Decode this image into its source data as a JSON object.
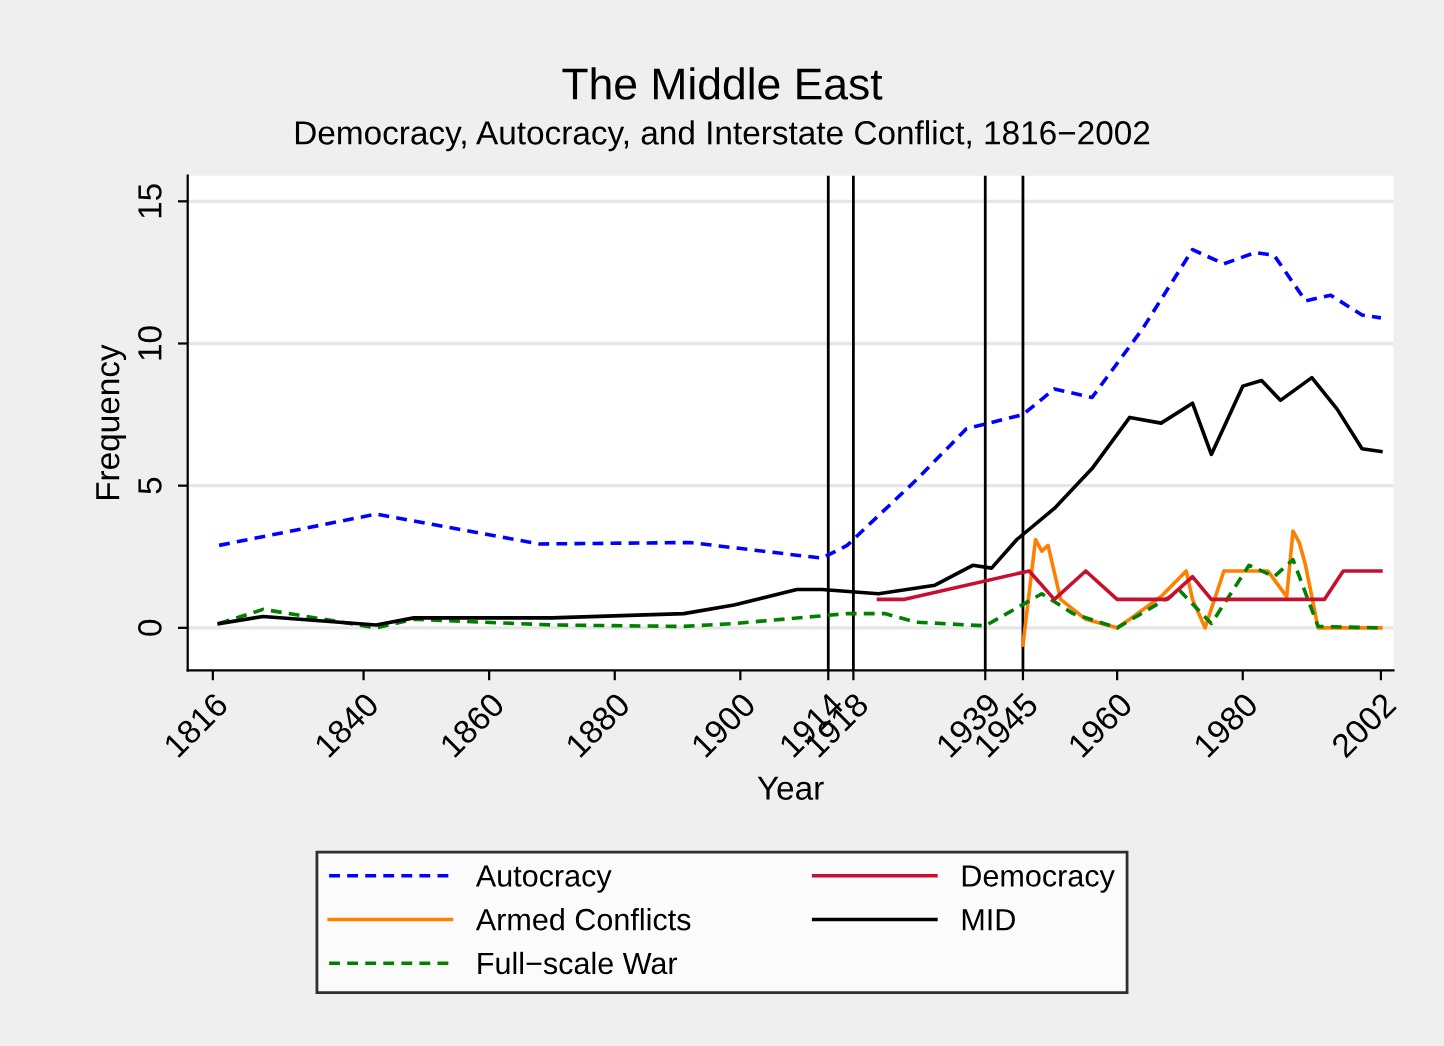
{
  "chart_data": {
    "type": "line",
    "title": "The Middle East",
    "subtitle": "Democracy, Autocracy, and Interstate Conflict, 1816−2002",
    "xlabel": "Year",
    "ylabel": "Frequency",
    "xlim": [
      1812,
      2004
    ],
    "ylim": [
      -1.5,
      15.9
    ],
    "xticks": [
      1816,
      1840,
      1860,
      1880,
      1900,
      1914,
      1918,
      1939,
      1945,
      1960,
      1980,
      2002
    ],
    "yticks": [
      0,
      5,
      10,
      15
    ],
    "grid": "y",
    "legend": "bottom",
    "ref_lines": [
      {
        "axis": "x",
        "value": 1914,
        "color": "#000000"
      },
      {
        "axis": "x",
        "value": 1918,
        "color": "#000000"
      },
      {
        "axis": "x",
        "value": 1939,
        "color": "#000000"
      },
      {
        "axis": "x",
        "value": 1945,
        "color": "#000000"
      }
    ],
    "series": [
      {
        "name": "Autocracy",
        "color": "#0000ff",
        "line_style": "dashed",
        "x": [
          1817,
          1842,
          1868,
          1892,
          1913,
          1917,
          1928,
          1936,
          1945,
          1950,
          1956,
          1964,
          1972,
          1977,
          1982,
          1985,
          1990,
          1994,
          1999,
          2002
        ],
        "values": [
          2.9,
          4.0,
          2.95,
          3.0,
          2.45,
          2.9,
          5.2,
          7.0,
          7.5,
          8.4,
          8.1,
          10.5,
          13.3,
          12.8,
          13.2,
          13.1,
          11.5,
          11.7,
          11.0,
          10.9
        ]
      },
      {
        "name": "Armed Conflicts",
        "color": "#ff8000",
        "line_style": "solid",
        "x": [
          1945,
          1947,
          1948,
          1949,
          1951,
          1955,
          1960,
          1962,
          1967,
          1971,
          1972,
          1974,
          1977,
          1984,
          1987,
          1988,
          1989,
          1990,
          1992,
          2002
        ],
        "values": [
          -0.6,
          3.1,
          2.7,
          2.9,
          1.0,
          0.3,
          0.0,
          0.3,
          1.1,
          2.0,
          1.0,
          0.0,
          2.0,
          2.0,
          1.1,
          3.4,
          3.0,
          2.2,
          0.0,
          0.0
        ]
      },
      {
        "name": "Full−scale War",
        "color": "#008000",
        "line_style": "dashed",
        "x": [
          1817,
          1824,
          1842,
          1848,
          1870,
          1891,
          1899,
          1917,
          1923,
          1928,
          1939,
          1948,
          1953,
          1960,
          1970,
          1975,
          1981,
          1985,
          1988,
          1992,
          2002
        ],
        "values": [
          0.15,
          0.65,
          0.0,
          0.3,
          0.1,
          0.05,
          0.15,
          0.5,
          0.5,
          0.2,
          0.07,
          1.2,
          0.5,
          0.0,
          1.3,
          0.15,
          2.2,
          1.8,
          2.4,
          0.05,
          0.0
        ]
      },
      {
        "name": "Democracy",
        "color": "#c8102e",
        "line_style": "solid",
        "x": [
          1922,
          1926,
          1946,
          1950,
          1955,
          1960,
          1968,
          1972,
          1975,
          1993,
          1996,
          2002
        ],
        "values": [
          1.0,
          1.0,
          2.0,
          1.0,
          2.0,
          1.0,
          1.0,
          1.8,
          1.0,
          1.0,
          2.0,
          2.0
        ]
      },
      {
        "name": "MID",
        "color": "#000000",
        "line_style": "solid",
        "x": [
          1817,
          1824,
          1842,
          1848,
          1870,
          1891,
          1899,
          1909,
          1913,
          1922,
          1931,
          1937,
          1940,
          1944,
          1950,
          1956,
          1962,
          1967,
          1972,
          1975,
          1980,
          1983,
          1986,
          1991,
          1995,
          1999,
          2002
        ],
        "values": [
          0.15,
          0.4,
          0.1,
          0.35,
          0.35,
          0.5,
          0.8,
          1.35,
          1.35,
          1.2,
          1.5,
          2.2,
          2.1,
          3.1,
          4.2,
          5.6,
          7.4,
          7.2,
          7.9,
          6.1,
          8.5,
          8.7,
          8.0,
          8.8,
          7.7,
          6.3,
          6.2
        ]
      }
    ]
  }
}
